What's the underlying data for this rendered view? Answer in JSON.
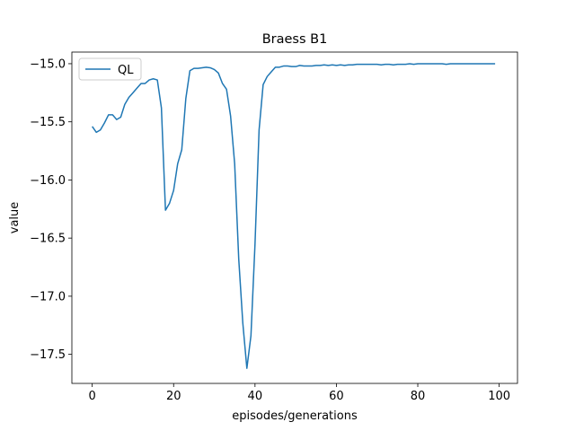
{
  "chart_data": {
    "type": "line",
    "title": "Braess B1",
    "xlabel": "episodes/generations",
    "ylabel": "value",
    "xlim": [
      -5,
      104.5
    ],
    "ylim": [
      -17.75,
      -14.9
    ],
    "x_ticks": [
      0,
      20,
      40,
      60,
      80,
      100
    ],
    "y_ticks": [
      -15.0,
      -15.5,
      -16.0,
      -16.5,
      -17.0,
      -17.5
    ],
    "x_tick_labels": [
      "0",
      "20",
      "40",
      "60",
      "80",
      "100"
    ],
    "y_tick_labels": [
      "−15.0",
      "−15.5",
      "−16.0",
      "−16.5",
      "−17.0",
      "−17.5"
    ],
    "grid": false,
    "legend_position": "top-left",
    "colors": {
      "line": "#1f77b4",
      "axes": "#000000",
      "legend_border": "#cccccc"
    },
    "series": [
      {
        "name": "QL",
        "x": [
          0,
          1,
          2,
          3,
          4,
          5,
          6,
          7,
          8,
          9,
          10,
          11,
          12,
          13,
          14,
          15,
          16,
          17,
          18,
          19,
          20,
          21,
          22,
          23,
          24,
          25,
          26,
          27,
          28,
          29,
          30,
          31,
          32,
          33,
          34,
          35,
          36,
          37,
          38,
          39,
          40,
          41,
          42,
          43,
          44,
          45,
          46,
          47,
          48,
          49,
          50,
          51,
          52,
          53,
          54,
          55,
          56,
          57,
          58,
          59,
          60,
          61,
          62,
          63,
          64,
          65,
          66,
          67,
          68,
          69,
          70,
          71,
          72,
          73,
          74,
          75,
          76,
          77,
          78,
          79,
          80,
          81,
          82,
          83,
          84,
          85,
          86,
          87,
          88,
          89,
          90,
          91,
          92,
          93,
          94,
          95,
          96,
          97,
          98,
          99
        ],
        "y": [
          -15.54,
          -15.59,
          -15.57,
          -15.51,
          -15.44,
          -15.44,
          -15.48,
          -15.46,
          -15.35,
          -15.29,
          -15.25,
          -15.21,
          -15.17,
          -15.17,
          -15.14,
          -15.13,
          -15.14,
          -15.38,
          -16.26,
          -16.2,
          -16.09,
          -15.86,
          -15.74,
          -15.3,
          -15.06,
          -15.04,
          -15.04,
          -15.035,
          -15.03,
          -15.035,
          -15.05,
          -15.08,
          -15.17,
          -15.22,
          -15.45,
          -15.86,
          -16.68,
          -17.23,
          -17.62,
          -17.34,
          -16.55,
          -15.57,
          -15.18,
          -15.11,
          -15.07,
          -15.03,
          -15.03,
          -15.02,
          -15.02,
          -15.025,
          -15.025,
          -15.015,
          -15.02,
          -15.02,
          -15.02,
          -15.015,
          -15.015,
          -15.01,
          -15.015,
          -15.01,
          -15.015,
          -15.01,
          -15.015,
          -15.01,
          -15.01,
          -15.005,
          -15.005,
          -15.005,
          -15.005,
          -15.005,
          -15.005,
          -15.01,
          -15.005,
          -15.005,
          -15.01,
          -15.005,
          -15.005,
          -15.005,
          -15.0,
          -15.005,
          -15.0,
          -15.0,
          -15.0,
          -15.0,
          -15.0,
          -15.0,
          -15.0,
          -15.005,
          -15.0,
          -15.0,
          -15.0,
          -15.0,
          -15.0,
          -15.0,
          -15.0,
          -15.0,
          -15.0,
          -15.0,
          -15.0,
          -15.0
        ]
      }
    ]
  }
}
